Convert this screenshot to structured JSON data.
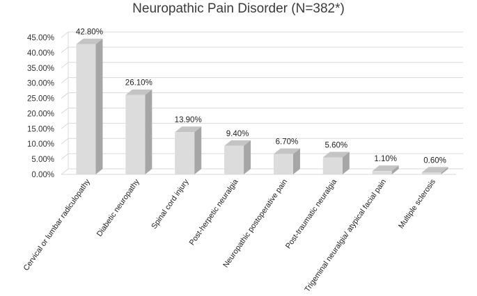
{
  "chart_data": {
    "type": "bar",
    "title": "Neuropathic Pain Disorder (N=382*)",
    "xlabel": "",
    "ylabel": "",
    "ylim": [
      0,
      45
    ],
    "y_ticks": [
      "0.00%",
      "5.00%",
      "10.00%",
      "15.00%",
      "20.00%",
      "25.00%",
      "30.00%",
      "35.00%",
      "40.00%",
      "45.00%"
    ],
    "categories": [
      "Cervical or lumbar radiculopathy",
      "Diabetic neuropathy",
      "Spinal cord injury",
      "Post-herpetic neuralgia",
      "Neuropathic postoperative pain",
      "Post-traumatic neuralgia",
      "Trigeminal neuralgia/ atypical facial pain",
      "Multiple sclerosis"
    ],
    "values": [
      42.8,
      26.1,
      13.9,
      9.4,
      6.7,
      5.6,
      1.1,
      0.6
    ],
    "data_labels": [
      "42.80%",
      "26.10%",
      "13.90%",
      "9.40%",
      "6.70%",
      "5.60%",
      "1.10%",
      "0.60%"
    ],
    "grid": true,
    "legend": "none",
    "colors": {
      "bar_front": "#dcdcdc",
      "bar_side": "#a6a6a6",
      "bar_top": "#c4c4c4",
      "grid": "#d9d9d9"
    }
  }
}
